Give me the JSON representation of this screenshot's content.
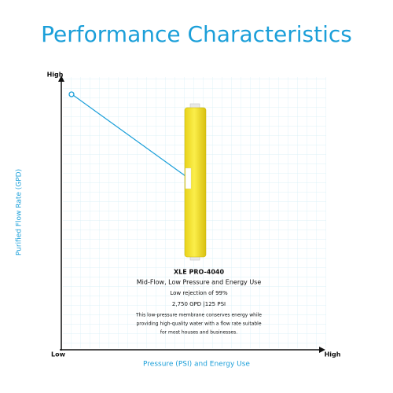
{
  "header": {
    "title": "Performance Characteristics"
  },
  "y_axis": {
    "label": "Purified Flow Rate (GPD)",
    "high": "High"
  },
  "x_axis": {
    "label": "Pressure (PSI) and Energy Use",
    "low": "Low",
    "high": "High"
  },
  "product": {
    "name": "XLE PRO-4040",
    "subtitle": "Mid-Flow, Low Pressure and Energy Use",
    "rejection": "Low rejection of 99%",
    "specs": "2,750 GPD |125 PSI",
    "description": [
      "This low-pressure membrane conserves energy while",
      "providing high-quality water with a flow rate suitable",
      "for most houses and businesses."
    ]
  }
}
